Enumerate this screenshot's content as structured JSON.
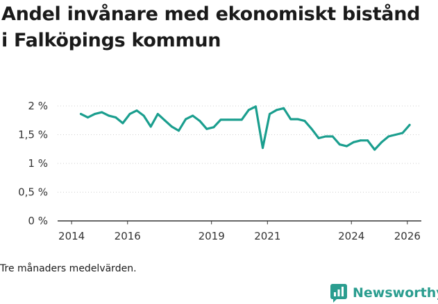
{
  "title": "Andel invånare med ekonomiskt bistånd i Falköpings kommun",
  "footnote": "Tre månaders medelvärden.",
  "brand": {
    "name": "Newsworthy",
    "logo_icon": "bar-chart-speech-bubble-icon"
  },
  "colors": {
    "line": "#1a9e8e",
    "brand": "#2a9d8f",
    "axis": "#333333",
    "grid": "#cfcfcf"
  },
  "chart_data": {
    "type": "line",
    "title": "Andel invånare med ekonomiskt bistånd i Falköpings kommun",
    "xlabel": "",
    "ylabel": "",
    "xlim": [
      2013.5,
      2026.5
    ],
    "ylim": [
      0,
      2
    ],
    "grid": "horizontal",
    "x_ticks": [
      2014,
      2016,
      2019,
      2021,
      2024,
      2026
    ],
    "x_tick_labels": [
      "2014",
      "2016",
      "2019",
      "2021",
      "2024",
      "2026"
    ],
    "y_ticks": [
      0,
      0.5,
      1,
      1.5,
      2
    ],
    "y_tick_labels": [
      "0 %",
      "0,5 %",
      "1 %",
      "1,5 %",
      "2 %"
    ],
    "series": [
      {
        "name": "Andel invånare med ekonomiskt bistånd",
        "x": [
          2014.33,
          2014.58,
          2014.83,
          2015.08,
          2015.33,
          2015.58,
          2015.83,
          2016.08,
          2016.33,
          2016.58,
          2016.83,
          2017.08,
          2017.33,
          2017.58,
          2017.83,
          2018.08,
          2018.33,
          2018.58,
          2018.83,
          2019.08,
          2019.33,
          2019.58,
          2019.83,
          2020.08,
          2020.33,
          2020.58,
          2020.83,
          2021.08,
          2021.33,
          2021.58,
          2021.83,
          2022.08,
          2022.33,
          2022.58,
          2022.83,
          2023.08,
          2023.33,
          2023.58,
          2023.83,
          2024.08,
          2024.33,
          2024.58,
          2024.83,
          2025.08,
          2025.33,
          2025.58,
          2025.83,
          2026.08
        ],
        "values": [
          1.86,
          1.8,
          1.86,
          1.89,
          1.83,
          1.8,
          1.7,
          1.86,
          1.92,
          1.83,
          1.64,
          1.86,
          1.75,
          1.64,
          1.57,
          1.77,
          1.83,
          1.74,
          1.6,
          1.63,
          1.76,
          1.76,
          1.76,
          1.76,
          1.93,
          1.99,
          1.27,
          1.86,
          1.93,
          1.96,
          1.77,
          1.77,
          1.74,
          1.6,
          1.44,
          1.47,
          1.47,
          1.33,
          1.3,
          1.37,
          1.4,
          1.4,
          1.24,
          1.37,
          1.47,
          1.5,
          1.53,
          1.67
        ]
      }
    ]
  }
}
